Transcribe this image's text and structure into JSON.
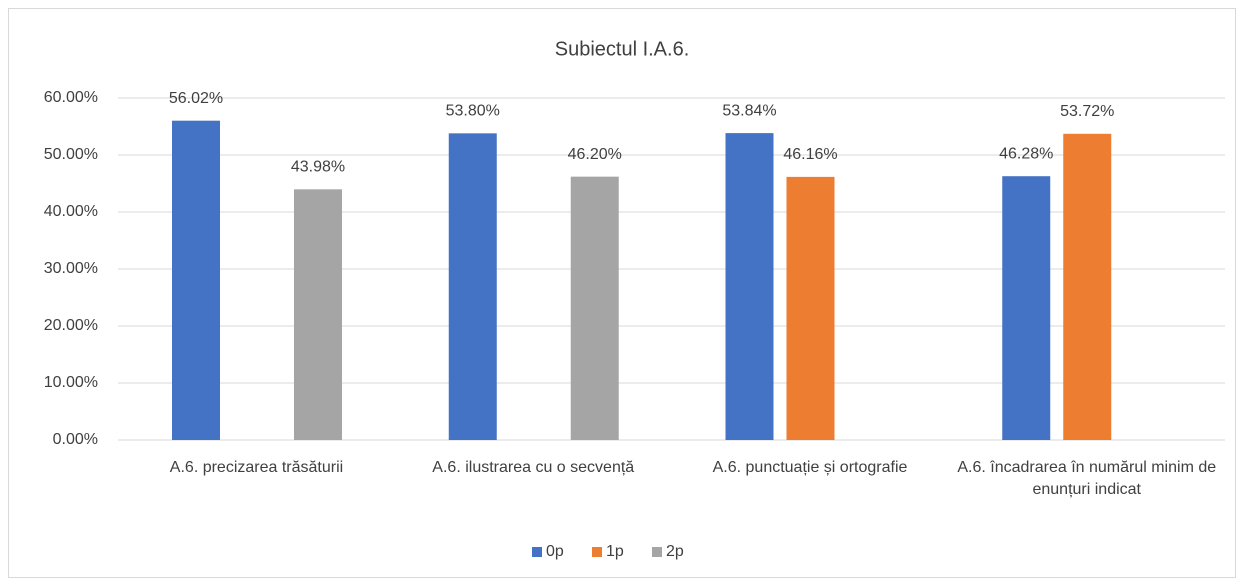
{
  "chart_data": {
    "type": "bar",
    "title": "Subiectul I.A.6.",
    "categories": [
      "A.6. precizarea trăsăturii",
      "A.6. ilustrarea cu o secvență",
      "A.6. punctuație și ortografie",
      "A.6. încadrarea în numărul minim de enunțuri indicat"
    ],
    "series": [
      {
        "name": "0p",
        "color": "#4472c4",
        "values": [
          56.02,
          53.8,
          53.84,
          46.28
        ],
        "value_labels": [
          "56.02%",
          "53.80%",
          "53.84%",
          "46.28%"
        ]
      },
      {
        "name": "1p",
        "color": "#ed7d31",
        "values": [
          null,
          null,
          46.16,
          53.72
        ],
        "value_labels": [
          null,
          null,
          "46.16%",
          "53.72%"
        ]
      },
      {
        "name": "2p",
        "color": "#a5a5a5",
        "values": [
          43.98,
          46.2,
          null,
          null
        ],
        "value_labels": [
          "43.98%",
          "46.20%",
          null,
          null
        ]
      }
    ],
    "ylim": [
      0,
      60
    ],
    "yticks": [
      {
        "value": 0,
        "label": "0.00%"
      },
      {
        "value": 10,
        "label": "10.00%"
      },
      {
        "value": 20,
        "label": "20.00%"
      },
      {
        "value": 30,
        "label": "30.00%"
      },
      {
        "value": 40,
        "label": "40.00%"
      },
      {
        "value": 50,
        "label": "50.00%"
      },
      {
        "value": 60,
        "label": "60.00%"
      }
    ],
    "grid": true,
    "legend": "bottom"
  }
}
